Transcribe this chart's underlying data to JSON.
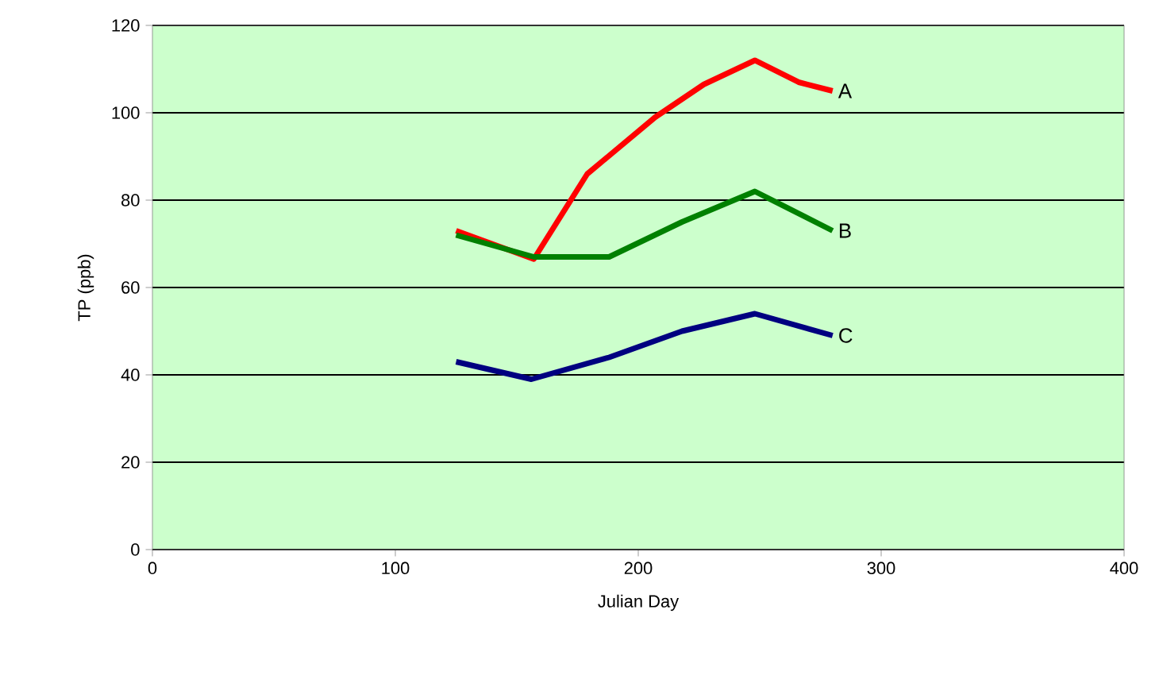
{
  "chart_data": {
    "type": "line",
    "xlabel": "Julian Day",
    "ylabel": "TP (ppb)",
    "xlim": [
      0,
      400
    ],
    "xticks": [
      0,
      100,
      200,
      300,
      400
    ],
    "ylim": [
      0,
      120
    ],
    "yticks": [
      0,
      20,
      40,
      60,
      80,
      100,
      120
    ],
    "grid": "y",
    "legend": false,
    "marker": "none",
    "line_style": "solid",
    "series": [
      {
        "name": "A",
        "color": "#ff0000",
        "x": [
          125,
          157,
          179,
          207,
          227,
          248,
          266,
          280
        ],
        "values": [
          73,
          66.5,
          86,
          99,
          106.5,
          112,
          107,
          105
        ]
      },
      {
        "name": "B",
        "color": "#008000",
        "x": [
          125,
          157,
          188,
          218,
          248,
          280
        ],
        "values": [
          72,
          67,
          67,
          75,
          82,
          73
        ]
      },
      {
        "name": "C",
        "color": "#000080",
        "x": [
          125,
          156,
          188,
          218,
          248,
          280
        ],
        "values": [
          43,
          39,
          44,
          50,
          54,
          49
        ]
      }
    ]
  }
}
